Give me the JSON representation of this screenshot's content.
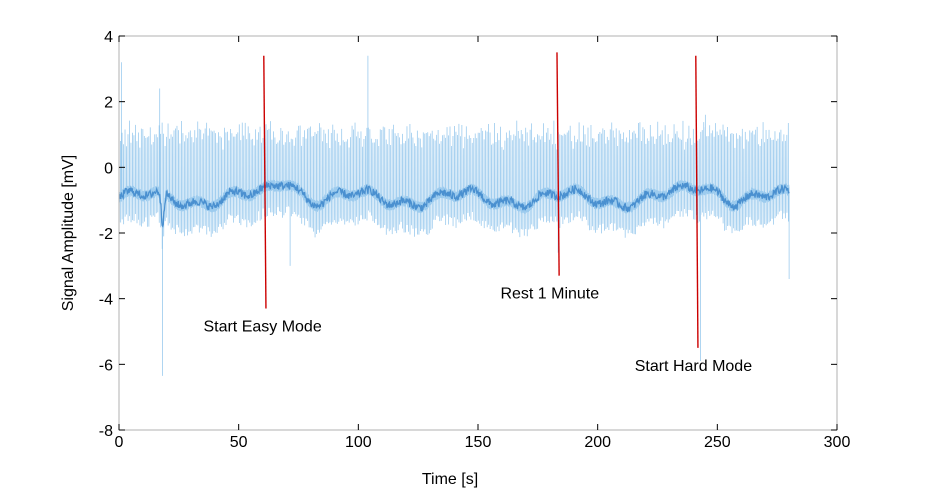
{
  "chart_data": {
    "type": "line",
    "title": "",
    "xlabel": "Time [s]",
    "ylabel": "Signal Amplitude [mV]",
    "xlim": [
      0,
      300
    ],
    "ylim": [
      -8,
      4
    ],
    "xticks": [
      0,
      50,
      100,
      150,
      200,
      250,
      300
    ],
    "yticks": [
      -8,
      -6,
      -4,
      -2,
      0,
      2,
      4
    ],
    "grid": false,
    "duration": 280,
    "series": [
      {
        "name": "",
        "color": "#4a90d0",
        "color_light": "#9ccbee",
        "baseline": -0.95,
        "peak_typical": 1.0,
        "trough_typical": -1.9,
        "min_points": [
          {
            "x": 18.2,
            "y": -6.35
          },
          {
            "x": 71.5,
            "y": -3.0
          },
          {
            "x": 183.5,
            "y": -2.6
          },
          {
            "x": 243,
            "y": -5.9
          },
          {
            "x": 280,
            "y": -3.4
          }
        ],
        "max_points": [
          {
            "x": 1,
            "y": 3.2
          },
          {
            "x": 17,
            "y": 2.4
          },
          {
            "x": 104,
            "y": 3.4
          },
          {
            "x": 245,
            "y": 1.6
          }
        ]
      }
    ],
    "events": [
      {
        "label": "Start Easy Mode",
        "x": 60.5,
        "y_top": 3.4,
        "y_bottom": -4.3,
        "color": "#cc0000",
        "text_x": 60,
        "text_y": -5.0
      },
      {
        "label": "Rest 1 Minute",
        "x": 183,
        "y_top": 3.5,
        "y_bottom": -3.3,
        "color": "#cc0000",
        "text_x": 180,
        "text_y": -4.0
      },
      {
        "label": "Start Hard Mode",
        "x": 241,
        "y_top": 3.4,
        "y_bottom": -5.5,
        "color": "#cc0000",
        "text_x": 240,
        "text_y": -6.2
      }
    ]
  }
}
